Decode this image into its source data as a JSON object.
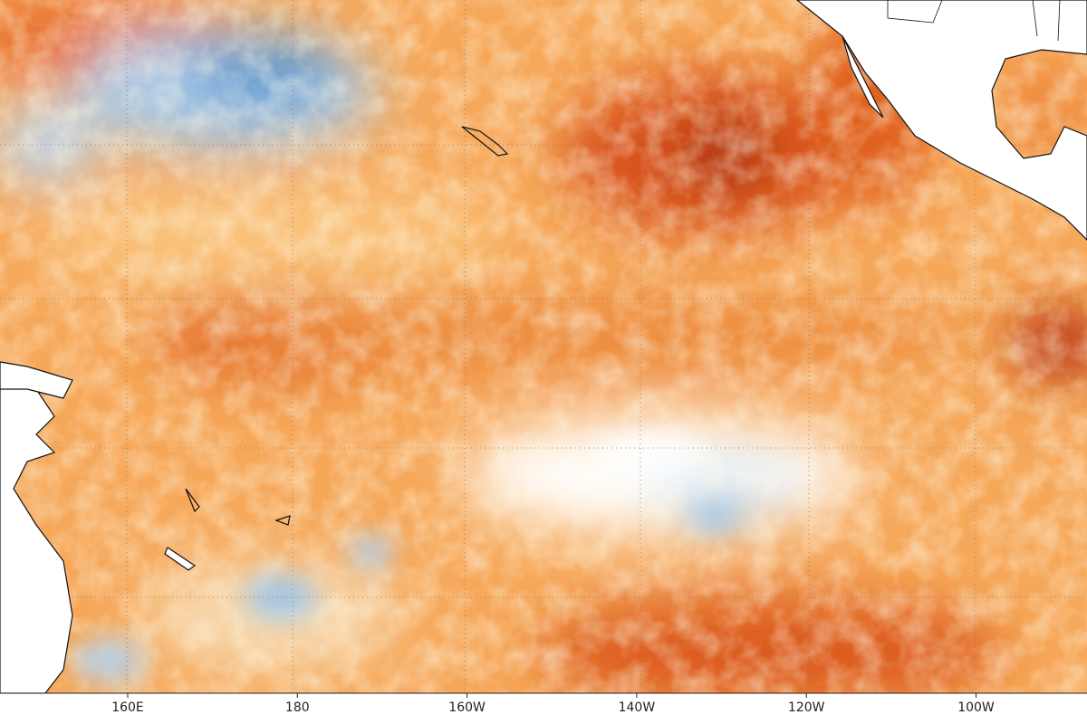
{
  "map": {
    "x_axis_labels": [
      "160E",
      "180",
      "160W",
      "140W",
      "120W",
      "100W"
    ]
  }
}
